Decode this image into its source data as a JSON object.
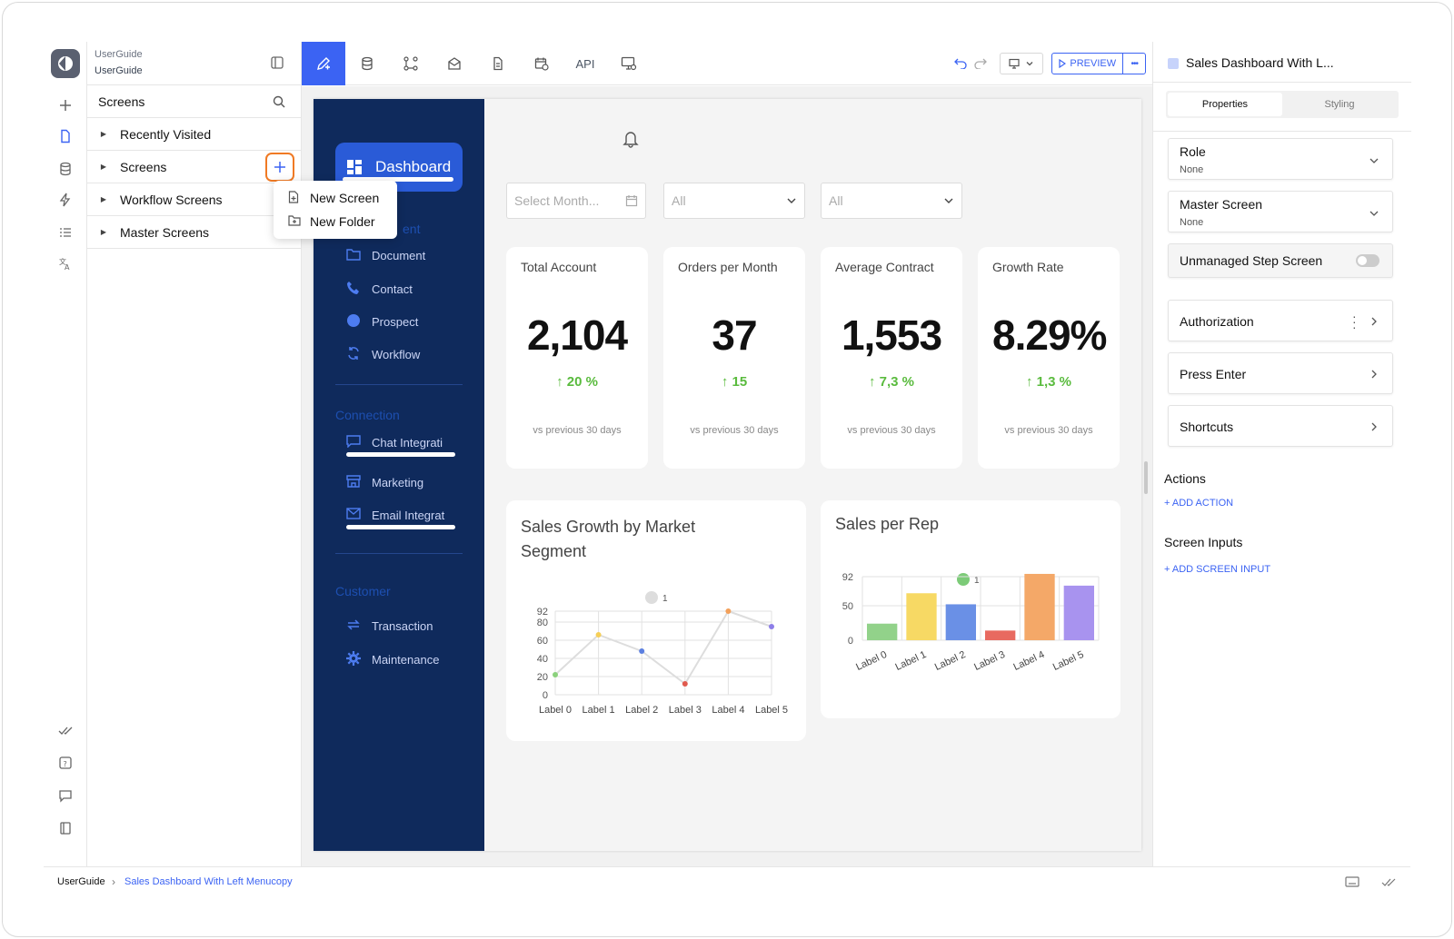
{
  "app": {
    "name_top": "UserGuide",
    "name_bottom": "UserGuide"
  },
  "tree": {
    "header": "Screens",
    "items": [
      {
        "label": "Recently Visited"
      },
      {
        "label": "Screens"
      },
      {
        "label": "Workflow Screens"
      },
      {
        "label": "Master Screens"
      }
    ]
  },
  "context_menu": {
    "items": [
      {
        "label": "New Screen"
      },
      {
        "label": "New Folder"
      }
    ]
  },
  "toolbar": {
    "api_label": "API",
    "preview_label": "PREVIEW",
    "more_label": "•••"
  },
  "preview": {
    "sidebar": {
      "dashboard_label": "Dashboard",
      "partial_section": "ent",
      "items": [
        {
          "label": "Document"
        },
        {
          "label": "Contact"
        },
        {
          "label": "Prospect"
        },
        {
          "label": "Workflow"
        }
      ],
      "connection_title": "Connection",
      "connection_items": [
        {
          "label": "Chat Integrati"
        },
        {
          "label": "Marketing"
        },
        {
          "label": "Email Integrat"
        }
      ],
      "customer_title": "Customer",
      "customer_items": [
        {
          "label": "Transaction"
        },
        {
          "label": "Maintenance"
        }
      ]
    },
    "filters": {
      "month_placeholder": "Select Month...",
      "filter2": "All",
      "filter3": "All"
    },
    "kpis": [
      {
        "label": "Total Account",
        "value": "2,104",
        "change": "↑ 20 %",
        "compare": "vs previous 30 days"
      },
      {
        "label": "Orders per Month",
        "value": "37",
        "change": "↑ 15",
        "compare": "vs previous 30 days"
      },
      {
        "label": "Average Contract",
        "value": "1,553",
        "change": "↑ 7,3 %",
        "compare": "vs previous 30 days"
      },
      {
        "label": "Growth Rate",
        "value": "8.29%",
        "change": "↑ 1,3 %",
        "compare": "vs previous 30 days"
      }
    ]
  },
  "chart_data": [
    {
      "type": "line",
      "title": "Sales Growth by Market Segment",
      "categories": [
        "Label 0",
        "Label 1",
        "Label 2",
        "Label 3",
        "Label 4",
        "Label 5"
      ],
      "series": [
        {
          "name": "1",
          "values": [
            22,
            66,
            48,
            12,
            92,
            75
          ]
        }
      ],
      "point_colors": [
        "#8bd17c",
        "#f6cf57",
        "#5b7fe0",
        "#e05a4e",
        "#f3a05a",
        "#8d7ee8"
      ],
      "yticks": [
        0,
        20,
        40,
        60,
        80,
        92
      ],
      "ylim": [
        0,
        92
      ],
      "grid": true,
      "legend": "top"
    },
    {
      "type": "bar",
      "title": "Sales per Rep",
      "categories": [
        "Label 0",
        "Label 1",
        "Label 2",
        "Label 3",
        "Label 4",
        "Label 5"
      ],
      "series": [
        {
          "name": "1",
          "values": [
            24,
            68,
            52,
            14,
            96,
            79
          ]
        }
      ],
      "bar_colors": [
        "#92d28a",
        "#f7d964",
        "#6a90e6",
        "#e86a60",
        "#f4a868",
        "#a893ef"
      ],
      "yticks": [
        0,
        50,
        92
      ],
      "ylim": [
        0,
        92
      ],
      "grid": true,
      "legend": "top"
    }
  ],
  "props": {
    "title": "Sales Dashboard With L...",
    "tab_properties": "Properties",
    "tab_styling": "Styling",
    "role_label": "Role",
    "role_value": "None",
    "master_label": "Master Screen",
    "master_value": "None",
    "unmanaged_label": "Unmanaged Step Screen",
    "authorization": "Authorization",
    "press_enter": "Press Enter",
    "shortcuts": "Shortcuts",
    "actions_title": "Actions",
    "add_action": "+ ADD ACTION",
    "inputs_title": "Screen Inputs",
    "add_input": "+ ADD SCREEN INPUT"
  },
  "footer": {
    "root": "UserGuide",
    "current": "Sales Dashboard With Left Menucopy"
  },
  "colors": {
    "accent": "#3b63f3",
    "sidebar": "#0f2a5c",
    "positive": "#5abb3e",
    "highlight": "#f07a24"
  }
}
